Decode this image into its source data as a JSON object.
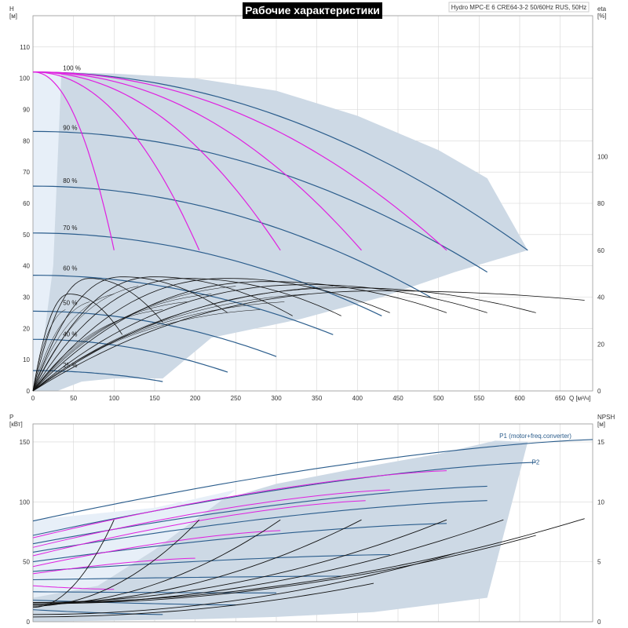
{
  "title": "Рабочие характеристики",
  "pump_info": "Hydro MPC-E 6 CRE64-3-2 50/60Hz RUS, 50Hz",
  "colors": {
    "envelope_fill": "#cdd9e5",
    "light_fill": "#e7eff8",
    "curve_blue": "#2b5d8c",
    "efficiency_magenta": "#e020e0",
    "system_black": "#111111",
    "grid": "#d6d6d6",
    "title_bg": "#000000"
  },
  "chart_data": [
    {
      "type": "line",
      "name": "head",
      "ylabel": "H",
      "yunit": "[м]",
      "xlabel": "Q",
      "xunit": "[м³/ч]",
      "y2label": "eta",
      "y2unit": "[%]",
      "xlim": [
        0,
        690
      ],
      "ylim": [
        0,
        120
      ],
      "y2lim": [
        0,
        160
      ],
      "xticks": [
        0,
        50,
        100,
        150,
        200,
        250,
        300,
        350,
        400,
        450,
        500,
        550,
        600,
        650
      ],
      "yticks": [
        0,
        10,
        20,
        30,
        40,
        50,
        60,
        70,
        80,
        90,
        100,
        110
      ],
      "y2ticks": [
        0,
        20,
        40,
        60,
        80,
        100
      ],
      "speed_labels": [
        {
          "text": "100 %",
          "x": 37,
          "y": 102
        },
        {
          "text": "90 %",
          "x": 37,
          "y": 83
        },
        {
          "text": "80 %",
          "x": 37,
          "y": 66
        },
        {
          "text": "70 %",
          "x": 37,
          "y": 51
        },
        {
          "text": "60 %",
          "x": 37,
          "y": 38
        },
        {
          "text": "50 %",
          "x": 37,
          "y": 27
        },
        {
          "text": "40 %",
          "x": 37,
          "y": 17
        },
        {
          "text": "25 %",
          "x": 37,
          "y": 7
        }
      ],
      "envelope": [
        [
          0,
          102
        ],
        [
          30,
          102
        ],
        [
          100,
          101.5
        ],
        [
          200,
          100
        ],
        [
          300,
          96
        ],
        [
          400,
          88
        ],
        [
          500,
          77
        ],
        [
          560,
          68
        ],
        [
          610,
          45
        ],
        [
          520,
          38
        ],
        [
          430,
          30
        ],
        [
          330,
          23
        ],
        [
          220,
          17
        ],
        [
          160,
          4
        ],
        [
          100,
          4
        ],
        [
          60,
          3
        ],
        [
          30,
          0
        ],
        [
          0,
          0
        ]
      ],
      "light_region": [
        [
          0,
          102
        ],
        [
          35,
          102
        ],
        [
          25,
          40
        ],
        [
          10,
          10
        ],
        [
          0,
          0
        ]
      ],
      "blue_curves": [
        {
          "h0": 102,
          "qmax": 610,
          "hmax": 45
        },
        {
          "h0": 83,
          "qmax": 560,
          "hmax": 38
        },
        {
          "h0": 65.5,
          "qmax": 490,
          "hmax": 30
        },
        {
          "h0": 50.5,
          "qmax": 430,
          "hmax": 24
        },
        {
          "h0": 37,
          "qmax": 370,
          "hmax": 18
        },
        {
          "h0": 25.5,
          "qmax": 300,
          "hmax": 11
        },
        {
          "h0": 16.5,
          "qmax": 240,
          "hmax": 6
        },
        {
          "h0": 6.5,
          "qmax": 160,
          "hmax": 3
        }
      ],
      "magenta_curves": [
        {
          "qmax": 100,
          "hmax": 45
        },
        {
          "qmax": 205,
          "hmax": 45
        },
        {
          "qmax": 305,
          "hmax": 45
        },
        {
          "qmax": 405,
          "hmax": 45
        },
        {
          "qmax": 510,
          "hmax": 45
        }
      ],
      "black_curves": [
        {
          "h0": 31,
          "qmax": 110,
          "hmax": 18,
          "peakq": 45,
          "peakh": 31
        },
        {
          "h0": 35,
          "qmax": 160,
          "hmax": 22,
          "peakq": 70,
          "peakh": 36
        },
        {
          "h0": 36,
          "qmax": 240,
          "hmax": 25,
          "peakq": 110,
          "peakh": 36.5
        },
        {
          "h0": 36,
          "qmax": 320,
          "hmax": 24,
          "peakq": 150,
          "peakh": 36.5
        },
        {
          "h0": 36,
          "qmax": 380,
          "hmax": 24,
          "peakq": 190,
          "peakh": 36
        },
        {
          "h0": 35,
          "qmax": 440,
          "hmax": 25,
          "peakq": 240,
          "peakh": 36
        },
        {
          "h0": 34,
          "qmax": 510,
          "hmax": 25,
          "peakq": 290,
          "peakh": 35
        },
        {
          "h0": 33,
          "qmax": 560,
          "hmax": 25,
          "peakq": 340,
          "peakh": 34
        },
        {
          "h0": 33,
          "qmax": 620,
          "hmax": 25,
          "peakq": 390,
          "peakh": 33
        },
        {
          "h0": 32,
          "qmax": 680,
          "hmax": 29,
          "peakq": 430,
          "peakh": 32
        }
      ]
    },
    {
      "type": "line",
      "name": "power",
      "ylabel": "P",
      "yunit": "[кВт]",
      "y2label": "NPSH",
      "y2unit": "[м]",
      "xlim": [
        0,
        690
      ],
      "ylim": [
        0,
        165
      ],
      "y2lim": [
        0,
        16.5
      ],
      "yticks": [
        0,
        50,
        100,
        150
      ],
      "y2ticks": [
        0,
        5,
        10,
        15
      ],
      "series_labels": [
        {
          "text": "P1 (motor+freq.converter)",
          "x": 575,
          "y": 152
        },
        {
          "text": "P2",
          "x": 615,
          "y": 130
        }
      ],
      "envelope": [
        [
          0,
          75
        ],
        [
          100,
          80
        ],
        [
          200,
          95
        ],
        [
          300,
          115
        ],
        [
          400,
          128
        ],
        [
          500,
          140
        ],
        [
          570,
          151
        ],
        [
          610,
          150
        ],
        [
          560,
          20
        ],
        [
          420,
          8
        ],
        [
          300,
          4
        ],
        [
          200,
          2
        ],
        [
          0,
          0
        ]
      ],
      "light_region": [
        [
          0,
          85
        ],
        [
          150,
          95
        ],
        [
          250,
          110
        ],
        [
          150,
          60
        ],
        [
          80,
          30
        ],
        [
          0,
          20
        ]
      ],
      "blue_curves": [
        {
          "y0": 84,
          "x1": 690,
          "y1": 152
        },
        {
          "y0": 72,
          "x1": 620,
          "y1": 133
        },
        {
          "y0": 65,
          "x1": 560,
          "y1": 113
        },
        {
          "y0": 58,
          "x1": 560,
          "y1": 101
        },
        {
          "y0": 50,
          "x1": 510,
          "y1": 82
        },
        {
          "y0": 42,
          "x1": 440,
          "y1": 56
        },
        {
          "y0": 35,
          "x1": 380,
          "y1": 38
        },
        {
          "y0": 25,
          "x1": 300,
          "y1": 24
        },
        {
          "y0": 18,
          "x1": 250,
          "y1": 14
        },
        {
          "y0": 10,
          "x1": 160,
          "y1": 6
        }
      ],
      "magenta_curves": [
        {
          "y0": 70,
          "x1": 510,
          "y1": 126
        },
        {
          "y0": 62,
          "x1": 440,
          "y1": 110
        },
        {
          "y0": 55,
          "x1": 410,
          "y1": 101
        },
        {
          "y0": 46,
          "x1": 305,
          "y1": 76
        },
        {
          "y0": 40,
          "x1": 200,
          "y1": 53
        },
        {
          "y0": 30,
          "x1": 100,
          "y1": 27
        }
      ],
      "npsh_curves": [
        {
          "x0": 0,
          "y0": 1.2,
          "x1": 100,
          "y1": 8.5
        },
        {
          "x0": 0,
          "y0": 1.3,
          "x1": 205,
          "y1": 8.5
        },
        {
          "x0": 0,
          "y0": 1.4,
          "x1": 305,
          "y1": 8.5
        },
        {
          "x0": 0,
          "y0": 1.5,
          "x1": 405,
          "y1": 8.5
        },
        {
          "x0": 0,
          "y0": 1.6,
          "x1": 510,
          "y1": 8.5
        },
        {
          "x0": 0,
          "y0": 1.5,
          "x1": 580,
          "y1": 8.5
        },
        {
          "x0": 0,
          "y0": 1.5,
          "x1": 620,
          "y1": 7.2
        },
        {
          "x0": 0,
          "y0": 1.6,
          "x1": 680,
          "y1": 8.6
        },
        {
          "x0": 0,
          "y0": 0.6,
          "x1": 520,
          "y1": 5.7
        },
        {
          "x0": 0,
          "y0": 0.4,
          "x1": 420,
          "y1": 3.2
        }
      ]
    }
  ]
}
